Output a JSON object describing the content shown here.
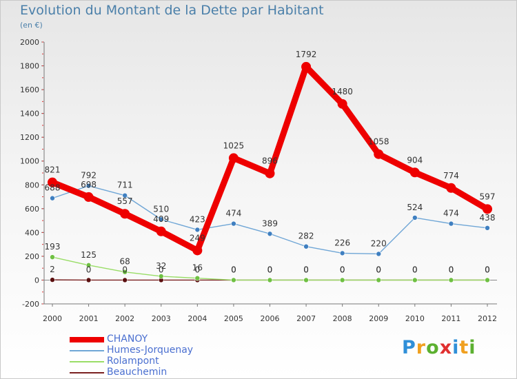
{
  "header": {
    "title": "Evolution du Montant de la Dette par Habitant",
    "subtitle": "(en €)"
  },
  "logo": {
    "text": "Proxiti",
    "letters": [
      {
        "ch": "P",
        "color": "#2f8fd8"
      },
      {
        "ch": "r",
        "color": "#f0a020"
      },
      {
        "ch": "o",
        "color": "#5cb030"
      },
      {
        "ch": "x",
        "color": "#e03030"
      },
      {
        "ch": "i",
        "color": "#2f8fd8"
      },
      {
        "ch": "t",
        "color": "#f0a020"
      },
      {
        "ch": "i",
        "color": "#5cb030"
      }
    ]
  },
  "chart_data": {
    "type": "line",
    "title": "Evolution du Montant de la Dette par Habitant",
    "ylabel": "(en €)",
    "xlabel": "",
    "x": [
      "2000",
      "2001",
      "2002",
      "2003",
      "2004",
      "2005",
      "2006",
      "2007",
      "2008",
      "2009",
      "2010",
      "2011",
      "2012"
    ],
    "ylim": [
      -200,
      2000
    ],
    "yticks": [
      -200,
      0,
      200,
      400,
      600,
      800,
      1000,
      1200,
      1400,
      1600,
      1800,
      2000
    ],
    "grid": false,
    "legend_position": "bottom-left",
    "series": [
      {
        "name": "CHANOY",
        "color": "#ee0000",
        "values": [
          821,
          698,
          557,
          409,
          249,
          1025,
          896,
          1792,
          1480,
          1058,
          904,
          774,
          597
        ],
        "labels": [
          "821",
          "698",
          "557",
          "409",
          "249",
          "1025",
          "896",
          "1792",
          "1480",
          "1058",
          "904",
          "774",
          "597"
        ]
      },
      {
        "name": "Humes-Jorquenay",
        "color": "#6fa6d6",
        "values": [
          688,
          792,
          711,
          510,
          423,
          474,
          389,
          282,
          226,
          220,
          524,
          474,
          438
        ],
        "labels": [
          "688",
          "792",
          "711",
          "510",
          "423",
          "474",
          "389",
          "282",
          "226",
          "220",
          "524",
          "474",
          "438"
        ]
      },
      {
        "name": "Rolampont",
        "color": "#99dd66",
        "values": [
          193,
          125,
          68,
          32,
          16,
          0,
          0,
          0,
          0,
          0,
          0,
          0,
          0
        ],
        "labels": [
          "193",
          "125",
          "68",
          "32",
          "16",
          "0",
          "0",
          "0",
          "0",
          "0",
          "0",
          "0",
          "0"
        ]
      },
      {
        "name": "Beauchemin",
        "color": "#7a2020",
        "values": [
          2,
          0,
          0,
          0,
          0,
          0,
          0,
          0,
          0,
          0,
          0,
          0,
          0
        ],
        "labels": [
          "2",
          "0",
          "0",
          "0",
          "0",
          "0",
          "0",
          "0",
          "0",
          "0",
          "0",
          "0",
          "0"
        ]
      }
    ]
  }
}
